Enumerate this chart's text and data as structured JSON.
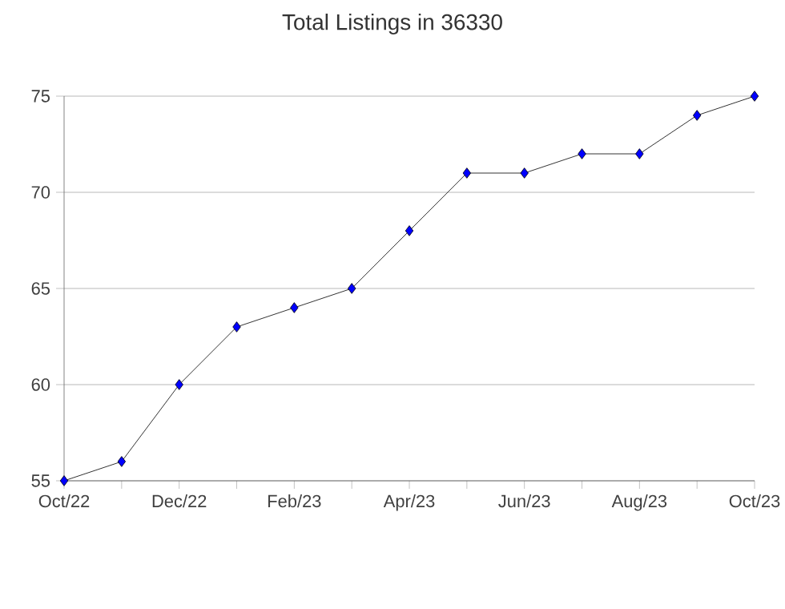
{
  "chart_data": {
    "type": "line",
    "title": "Total Listings in 36330",
    "categories": [
      "Oct/22",
      null,
      "Dec/22",
      null,
      "Feb/23",
      null,
      "Apr/23",
      null,
      "Jun/23",
      null,
      "Aug/23",
      null,
      "Oct/23"
    ],
    "series": [
      {
        "color": "#0000ff",
        "values": [
          55,
          56,
          60,
          63,
          64,
          65,
          68,
          71,
          71,
          72,
          72,
          74,
          75
        ]
      }
    ],
    "ylim": [
      55,
      75
    ],
    "yticks": [
      55,
      60,
      65,
      70,
      75
    ],
    "grid": "y",
    "marker": "diamond",
    "line_style": "solid"
  }
}
